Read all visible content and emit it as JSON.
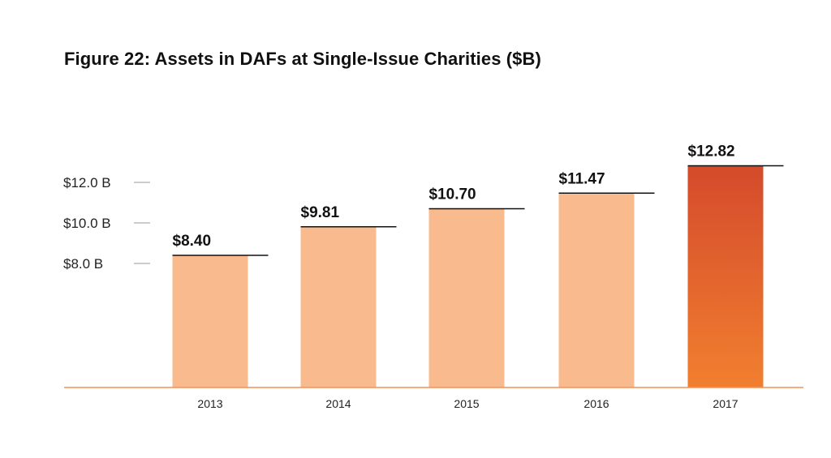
{
  "chart_data": {
    "type": "bar",
    "title": "Figure 22: Assets in DAFs at Single-Issue Charities ($B)",
    "categories": [
      "2013",
      "2014",
      "2015",
      "2016",
      "2017"
    ],
    "values": [
      8.4,
      9.81,
      10.7,
      11.47,
      12.82
    ],
    "data_labels": [
      "$8.40",
      "$9.81",
      "$10.70",
      "$11.47",
      "$12.82"
    ],
    "ytick_values": [
      8.0,
      10.0,
      12.0
    ],
    "ytick_labels": [
      "$8.0 B",
      "$10.0 B",
      "$12.0 B"
    ],
    "xlabel": "",
    "ylabel": "",
    "grid": false,
    "colors": {
      "bar": "#f9bb8e",
      "highlight_top": "#d44a2c",
      "highlight_bottom": "#f17f2f",
      "baseline": "#f0915a",
      "tick_marks": "#bbbbbb",
      "label_line": "#111111"
    },
    "highlight_index": 4
  }
}
